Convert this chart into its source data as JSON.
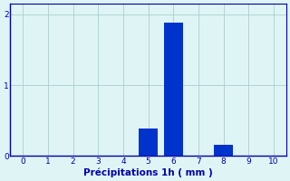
{
  "categories": [
    0,
    1,
    2,
    3,
    4,
    5,
    6,
    7,
    8,
    9,
    10
  ],
  "bar_values": [
    0,
    0,
    0,
    0,
    0,
    0.38,
    1.88,
    0,
    0.15,
    0,
    0
  ],
  "bar_color": "#0033cc",
  "background_color": "#dff5f5",
  "grid_color": "#aacece",
  "xlabel": "Précipitations 1h ( mm )",
  "xlabel_color": "#0000aa",
  "tick_color": "#0000aa",
  "xlim": [
    -0.5,
    10.5
  ],
  "ylim": [
    0,
    2.15
  ],
  "yticks": [
    0,
    1,
    2
  ],
  "xticks": [
    0,
    1,
    2,
    3,
    4,
    5,
    6,
    7,
    8,
    9,
    10
  ],
  "bar_width": 0.75,
  "axis_fontsize": 7.5,
  "tick_fontsize": 6.5
}
